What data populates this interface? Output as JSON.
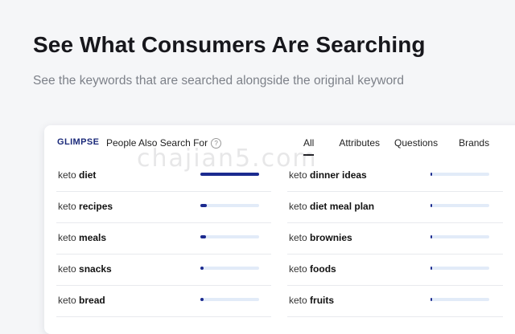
{
  "headline": "See What Consumers Are Searching",
  "subheadline": "See the keywords that are searched alongside the original keyword",
  "panel": {
    "logo_text": "GLIMPSE",
    "title": "People Also Search For",
    "help_icon": "question-circle-icon",
    "tabs": [
      {
        "label": "All",
        "active": true
      },
      {
        "label": "Attributes",
        "active": false
      },
      {
        "label": "Questions",
        "active": false
      },
      {
        "label": "Brands",
        "active": false
      }
    ],
    "left_column": [
      {
        "prefix": "keto",
        "term": "diet",
        "relative_volume": 1.0
      },
      {
        "prefix": "keto",
        "term": "recipes",
        "relative_volume": 0.11
      },
      {
        "prefix": "keto",
        "term": "meals",
        "relative_volume": 0.09
      },
      {
        "prefix": "keto",
        "term": "snacks",
        "relative_volume": 0.06
      },
      {
        "prefix": "keto",
        "term": "bread",
        "relative_volume": 0.05
      }
    ],
    "right_column": [
      {
        "prefix": "keto",
        "term": "dinner ideas",
        "relative_volume": 0.03
      },
      {
        "prefix": "keto",
        "term": "diet meal plan",
        "relative_volume": 0.03
      },
      {
        "prefix": "keto",
        "term": "brownies",
        "relative_volume": 0.03
      },
      {
        "prefix": "keto",
        "term": "foods",
        "relative_volume": 0.03
      },
      {
        "prefix": "keto",
        "term": "fruits",
        "relative_volume": 0.03
      }
    ]
  },
  "watermark": "chajian5.com",
  "colors": {
    "bar_fill": "#1b2a8f",
    "bar_track": "#e2ebf8",
    "background": "#f5f6f8"
  }
}
